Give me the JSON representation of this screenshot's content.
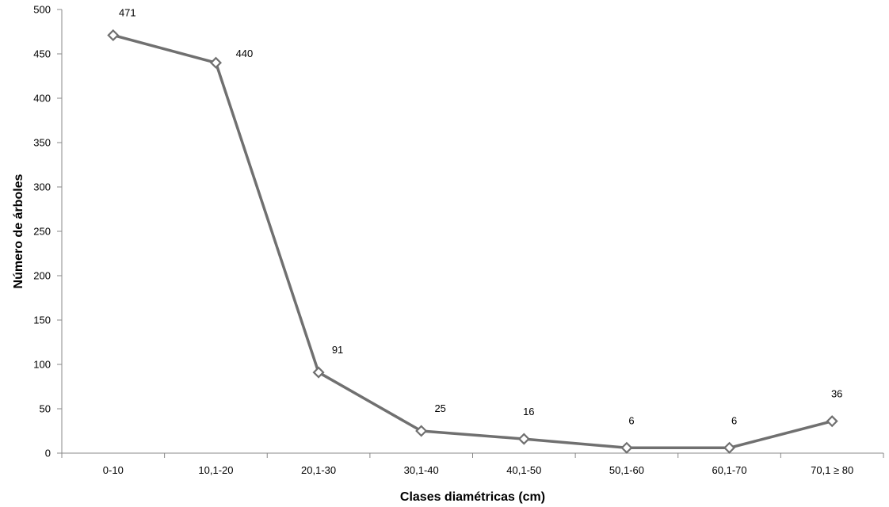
{
  "chart_data": {
    "type": "line",
    "categories": [
      "0-10",
      "10,1-20",
      "20,1-30",
      "30,1-40",
      "40,1-50",
      "50,1-60",
      "60,1-70",
      "70,1 ≥ 80"
    ],
    "values": [
      471,
      440,
      91,
      25,
      16,
      6,
      6,
      36
    ],
    "data_labels": [
      "471",
      "440",
      "91",
      "25",
      "16",
      "6",
      "6",
      "36"
    ],
    "xlabel": "Clases diamétricas (cm)",
    "ylabel": "Número de árboles",
    "ylim": [
      0,
      500
    ],
    "yticks": [
      0,
      50,
      100,
      150,
      200,
      250,
      300,
      350,
      400,
      450,
      500
    ],
    "grid": false,
    "marker": "diamond",
    "line_color": "#707070"
  }
}
